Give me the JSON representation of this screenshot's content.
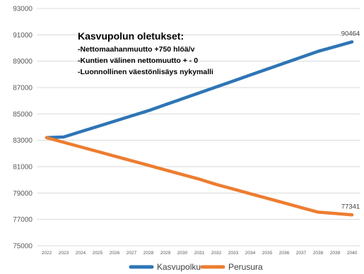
{
  "chart_data": {
    "type": "line",
    "title": "",
    "xlabel": "",
    "ylabel": "",
    "x": [
      2022,
      2023,
      2024,
      2025,
      2026,
      2027,
      2028,
      2029,
      2030,
      2031,
      2032,
      2033,
      2034,
      2035,
      2036,
      2037,
      2038,
      2039,
      2040
    ],
    "ylim": [
      75000,
      93000
    ],
    "yticks": [
      "75000",
      "77000",
      "79000",
      "81000",
      "83000",
      "85000",
      "87000",
      "89000",
      "91000",
      "93000"
    ],
    "grid": true,
    "legend_position": "bottom",
    "series": [
      {
        "name": "Kasvupolku",
        "color": "#2E75B6",
        "values": [
          83200,
          83250,
          83650,
          84050,
          84450,
          84850,
          85250,
          85700,
          86150,
          86600,
          87050,
          87500,
          87950,
          88400,
          88850,
          89300,
          89750,
          90100,
          90464
        ],
        "end_label": "90464"
      },
      {
        "name": "Perusura",
        "color": "#ED7D31",
        "values": [
          83200,
          82850,
          82500,
          82150,
          81800,
          81450,
          81100,
          80750,
          80400,
          80050,
          79650,
          79300,
          78950,
          78600,
          78250,
          77900,
          77550,
          77450,
          77341
        ],
        "end_label": "77341"
      }
    ],
    "annotation": {
      "title": "Kasvupolun oletukset:",
      "lines": [
        "-Nettomaahanmuutto +750 hlöä/v",
        "-Kuntien välinen nettomuutto + - 0",
        "-Luonnollinen väestönlisäys nykymalli"
      ]
    }
  }
}
